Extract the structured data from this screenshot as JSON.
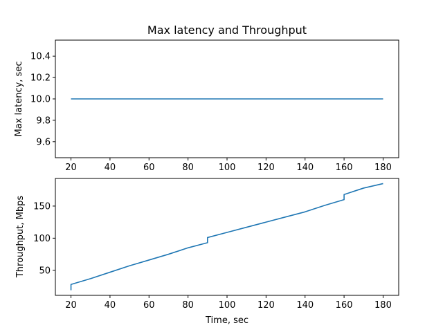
{
  "chart_data": [
    {
      "type": "line",
      "title": "Max latency and Throughput",
      "xlabel": "",
      "ylabel": "Max latency, sec",
      "xlim": [
        12,
        188
      ],
      "ylim": [
        9.45,
        10.55
      ],
      "xticks": [
        20,
        40,
        60,
        80,
        100,
        120,
        140,
        160,
        180
      ],
      "yticks": [
        9.6,
        9.8,
        10.0,
        10.2,
        10.4
      ],
      "ytick_labels": [
        "9.6",
        "9.8",
        "10.0",
        "10.2",
        "10.4"
      ],
      "grid": false,
      "color": "#1f77b4",
      "series": [
        {
          "x": [
            20,
            180
          ],
          "y": [
            10.0,
            10.0
          ]
        }
      ]
    },
    {
      "type": "line",
      "title": "",
      "xlabel": "Time, sec",
      "ylabel": "Throughput, Mbps",
      "xlim": [
        12,
        188
      ],
      "ylim": [
        11,
        193
      ],
      "xticks": [
        20,
        40,
        60,
        80,
        100,
        120,
        140,
        160,
        180
      ],
      "yticks": [
        50,
        100,
        150
      ],
      "ytick_labels": [
        "50",
        "100",
        "150"
      ],
      "grid": false,
      "color": "#1f77b4",
      "series": [
        {
          "x": [
            20,
            20,
            30,
            40,
            50,
            60,
            70,
            80,
            90,
            90,
            100,
            110,
            120,
            130,
            140,
            150,
            160,
            160,
            170,
            180
          ],
          "y": [
            19,
            28,
            37,
            47,
            57,
            66,
            75,
            85,
            93,
            101,
            109,
            117,
            125,
            133,
            141,
            151,
            160,
            168,
            178,
            185
          ]
        }
      ]
    }
  ]
}
